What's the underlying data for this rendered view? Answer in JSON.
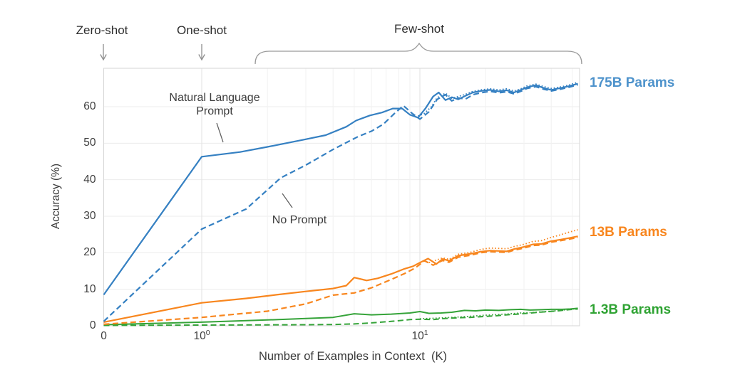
{
  "annotations": {
    "zero_shot": "Zero-shot",
    "one_shot": "One-shot",
    "few_shot": "Few-shot",
    "natural_language_prompt": {
      "line1": "Natural Language",
      "line2": "Prompt"
    },
    "no_prompt": "No Prompt"
  },
  "legend": [
    {
      "label": "175B Params",
      "color": "#4d92cb"
    },
    {
      "label": "13B Params",
      "color": "#f8861e"
    },
    {
      "label": "1.3B Params",
      "color": "#2fa333"
    }
  ],
  "chart_data": {
    "type": "line",
    "title": "",
    "xlabel": "Number of Examples in Context  (K)",
    "ylabel": "Accuracy (%)",
    "x_scale": "symlog",
    "x_ticks": [
      {
        "text": "0",
        "value": 0
      },
      {
        "base": "10",
        "exp": "0",
        "value": 1
      },
      {
        "base": "10",
        "exp": "1",
        "value": 10
      }
    ],
    "y_ticks": [
      0,
      10,
      20,
      30,
      40,
      50,
      60
    ],
    "ylim": [
      0,
      70.5
    ],
    "xlim": [
      0,
      53
    ],
    "grid": true,
    "minor_grid_x": [
      2,
      3,
      4,
      5,
      6,
      7,
      8,
      9,
      20,
      30,
      40,
      50
    ],
    "major_grid_x": [
      1,
      10
    ],
    "legend_position": "right-outside",
    "colors": {
      "blue": "#3580c2",
      "orange": "#f8861e",
      "green": "#35a339"
    },
    "series": [
      {
        "name": "1.3B — dotted variant",
        "color": "#35a339",
        "style": "dotted",
        "width": 1.8,
        "points": [
          [
            10,
            1.9
          ],
          [
            12,
            2.1
          ],
          [
            14,
            2.3
          ],
          [
            16,
            2.5
          ],
          [
            18,
            2.7
          ],
          [
            20,
            2.9
          ],
          [
            23,
            3.1
          ],
          [
            26,
            3.3
          ],
          [
            29,
            3.5
          ],
          [
            32,
            3.6
          ],
          [
            36,
            3.8
          ],
          [
            40,
            4.0
          ],
          [
            45,
            4.3
          ],
          [
            49,
            4.5
          ],
          [
            53,
            4.7
          ]
        ]
      },
      {
        "name": "1.3B — No Prompt",
        "color": "#35a339",
        "style": "dashed",
        "width": 2,
        "points": [
          [
            0,
            0.1
          ],
          [
            1,
            0.2
          ],
          [
            2,
            0.25
          ],
          [
            3,
            0.3
          ],
          [
            4,
            0.35
          ],
          [
            5,
            0.5
          ],
          [
            6,
            0.8
          ],
          [
            7.4,
            1.2
          ],
          [
            9,
            1.7
          ],
          [
            10,
            1.8
          ],
          [
            11.5,
            1.7
          ],
          [
            13,
            2.0
          ],
          [
            15,
            2.2
          ],
          [
            17,
            2.3
          ],
          [
            19,
            2.5
          ],
          [
            22,
            2.7
          ],
          [
            25,
            3.0
          ],
          [
            28,
            3.2
          ],
          [
            31,
            3.4
          ],
          [
            35,
            3.7
          ],
          [
            39,
            3.9
          ],
          [
            43,
            4.1
          ],
          [
            48,
            4.4
          ],
          [
            53,
            4.6
          ]
        ]
      },
      {
        "name": "1.3B — Natural Language Prompt",
        "color": "#35a339",
        "style": "solid",
        "width": 2,
        "points": [
          [
            0,
            0.3
          ],
          [
            1,
            1.0
          ],
          [
            2,
            1.6
          ],
          [
            3,
            2.0
          ],
          [
            4,
            2.3
          ],
          [
            5,
            3.3
          ],
          [
            6,
            3.0
          ],
          [
            7.4,
            3.2
          ],
          [
            9,
            3.5
          ],
          [
            10,
            3.9
          ],
          [
            11,
            3.4
          ],
          [
            12.5,
            3.5
          ],
          [
            14,
            3.7
          ],
          [
            16,
            4.2
          ],
          [
            18,
            4.1
          ],
          [
            20,
            4.3
          ],
          [
            23,
            4.2
          ],
          [
            26,
            4.4
          ],
          [
            29,
            4.5
          ],
          [
            32,
            4.3
          ],
          [
            36,
            4.4
          ],
          [
            40,
            4.5
          ],
          [
            45,
            4.5
          ],
          [
            49,
            4.6
          ],
          [
            53,
            4.8
          ]
        ]
      },
      {
        "name": "13B — dotted variant",
        "color": "#f8861e",
        "style": "dotted",
        "width": 1.8,
        "points": [
          [
            11,
            17.3
          ],
          [
            12.7,
            18.6
          ],
          [
            13.6,
            18.2
          ],
          [
            15,
            19.6
          ],
          [
            17,
            20.1
          ],
          [
            19,
            20.9
          ],
          [
            21,
            21.3
          ],
          [
            23,
            21.2
          ],
          [
            25,
            21.1
          ],
          [
            27,
            21.7
          ],
          [
            30,
            22.3
          ],
          [
            33,
            23.1
          ],
          [
            36,
            23.3
          ],
          [
            40,
            24.2
          ],
          [
            44,
            24.9
          ],
          [
            48,
            25.6
          ],
          [
            53,
            26.3
          ]
        ]
      },
      {
        "name": "13B — No Prompt",
        "color": "#f8861e",
        "style": "dashed",
        "width": 2.2,
        "points": [
          [
            0,
            0.4
          ],
          [
            1,
            2.3
          ],
          [
            2,
            4.0
          ],
          [
            3,
            6.0
          ],
          [
            4,
            8.4
          ],
          [
            5,
            9.0
          ],
          [
            6,
            10.4
          ],
          [
            7.4,
            12.7
          ],
          [
            8.5,
            14.3
          ],
          [
            9.5,
            15.8
          ],
          [
            10.5,
            17.8
          ],
          [
            11.5,
            16.6
          ],
          [
            12.7,
            17.9
          ],
          [
            13.6,
            17.4
          ],
          [
            15,
            18.8
          ],
          [
            17,
            19.3
          ],
          [
            19,
            20.0
          ],
          [
            21,
            20.3
          ],
          [
            23,
            20.2
          ],
          [
            25,
            20.1
          ],
          [
            27,
            20.7
          ],
          [
            30,
            21.3
          ],
          [
            33,
            22.0
          ],
          [
            36,
            22.1
          ],
          [
            40,
            22.9
          ],
          [
            44,
            23.3
          ],
          [
            48,
            23.7
          ],
          [
            53,
            24.2
          ]
        ]
      },
      {
        "name": "13B — Natural Language Prompt",
        "color": "#f8861e",
        "style": "solid",
        "width": 2.2,
        "points": [
          [
            0,
            1.0
          ],
          [
            1,
            6.3
          ],
          [
            1.6,
            7.5
          ],
          [
            2.2,
            8.5
          ],
          [
            3,
            9.4
          ],
          [
            4,
            10.2
          ],
          [
            4.6,
            11.0
          ],
          [
            5,
            13.2
          ],
          [
            5.7,
            12.4
          ],
          [
            6.4,
            13.0
          ],
          [
            7.4,
            14.2
          ],
          [
            8.5,
            15.6
          ],
          [
            9.3,
            16.3
          ],
          [
            10,
            17.3
          ],
          [
            10.9,
            18.4
          ],
          [
            11.9,
            16.9
          ],
          [
            12.7,
            18.3
          ],
          [
            13.6,
            17.8
          ],
          [
            15,
            19.2
          ],
          [
            17,
            19.7
          ],
          [
            19,
            20.3
          ],
          [
            21,
            20.6
          ],
          [
            23,
            20.5
          ],
          [
            25,
            20.4
          ],
          [
            27,
            21.0
          ],
          [
            30,
            21.6
          ],
          [
            33,
            22.3
          ],
          [
            36,
            22.4
          ],
          [
            40,
            23.2
          ],
          [
            44,
            23.6
          ],
          [
            48,
            24.0
          ],
          [
            53,
            24.5
          ]
        ]
      },
      {
        "name": "175B — dotted variant",
        "color": "#3580c2",
        "style": "dotted",
        "width": 1.8,
        "points": [
          [
            9.5,
            57.2
          ],
          [
            10.4,
            58.0
          ],
          [
            11.3,
            60.0
          ],
          [
            12,
            62.5
          ],
          [
            13.1,
            63.7
          ],
          [
            14,
            62.3
          ],
          [
            15,
            62.8
          ],
          [
            16.2,
            63.4
          ],
          [
            17.5,
            64.2
          ],
          [
            19,
            64.6
          ],
          [
            21,
            64.9
          ],
          [
            23,
            64.6
          ],
          [
            25,
            64.9
          ],
          [
            27,
            64.3
          ],
          [
            29,
            64.9
          ],
          [
            31,
            65.7
          ],
          [
            34,
            66.2
          ],
          [
            37,
            65.5
          ],
          [
            40,
            65.0
          ],
          [
            44,
            65.4
          ],
          [
            48,
            65.9
          ],
          [
            53,
            66.7
          ]
        ]
      },
      {
        "name": "175B — No Prompt",
        "color": "#3580c2",
        "style": "dashed",
        "width": 2.2,
        "points": [
          [
            0,
            1.2
          ],
          [
            1,
            26.5
          ],
          [
            1.6,
            32.0
          ],
          [
            2.3,
            40.5
          ],
          [
            3,
            44.0
          ],
          [
            4,
            48.3
          ],
          [
            5.2,
            51.8
          ],
          [
            6,
            53.3
          ],
          [
            6.8,
            55.2
          ],
          [
            7.6,
            58.0
          ],
          [
            8.4,
            60.3
          ],
          [
            9.2,
            58.2
          ],
          [
            10,
            56.6
          ],
          [
            11,
            58.6
          ],
          [
            12,
            62.0
          ],
          [
            13.1,
            63.3
          ],
          [
            14,
            61.6
          ],
          [
            15,
            62.4
          ],
          [
            16.2,
            62.1
          ],
          [
            17.5,
            63.3
          ],
          [
            19,
            63.8
          ],
          [
            21,
            64.2
          ],
          [
            23,
            63.8
          ],
          [
            25,
            64.1
          ],
          [
            27,
            63.5
          ],
          [
            29,
            64.2
          ],
          [
            31,
            65.0
          ],
          [
            34,
            65.5
          ],
          [
            37,
            64.8
          ],
          [
            40,
            64.3
          ],
          [
            44,
            64.8
          ],
          [
            48,
            65.3
          ],
          [
            53,
            66.0
          ]
        ]
      },
      {
        "name": "175B — Natural Language Prompt",
        "color": "#3580c2",
        "style": "solid",
        "width": 2.2,
        "points": [
          [
            0,
            8.5
          ],
          [
            1,
            46.3
          ],
          [
            1.5,
            47.6
          ],
          [
            2,
            49.0
          ],
          [
            2.9,
            50.9
          ],
          [
            3.7,
            52.2
          ],
          [
            4.6,
            54.5
          ],
          [
            5.1,
            56.2
          ],
          [
            5.9,
            57.6
          ],
          [
            6.7,
            58.4
          ],
          [
            7.5,
            59.5
          ],
          [
            8.3,
            59.5
          ],
          [
            9,
            57.8
          ],
          [
            9.8,
            57.0
          ],
          [
            10.6,
            59.5
          ],
          [
            11.5,
            62.8
          ],
          [
            12.2,
            63.9
          ],
          [
            13.1,
            61.8
          ],
          [
            14,
            62.6
          ],
          [
            15,
            62.0
          ],
          [
            16.2,
            63.0
          ],
          [
            17.5,
            63.9
          ],
          [
            19,
            64.3
          ],
          [
            21,
            64.6
          ],
          [
            23,
            64.2
          ],
          [
            25,
            64.5
          ],
          [
            27,
            63.9
          ],
          [
            29,
            64.6
          ],
          [
            31,
            65.3
          ],
          [
            34,
            65.9
          ],
          [
            37,
            65.1
          ],
          [
            40,
            64.6
          ],
          [
            44,
            65.1
          ],
          [
            48,
            65.6
          ],
          [
            53,
            66.3
          ]
        ]
      }
    ]
  }
}
